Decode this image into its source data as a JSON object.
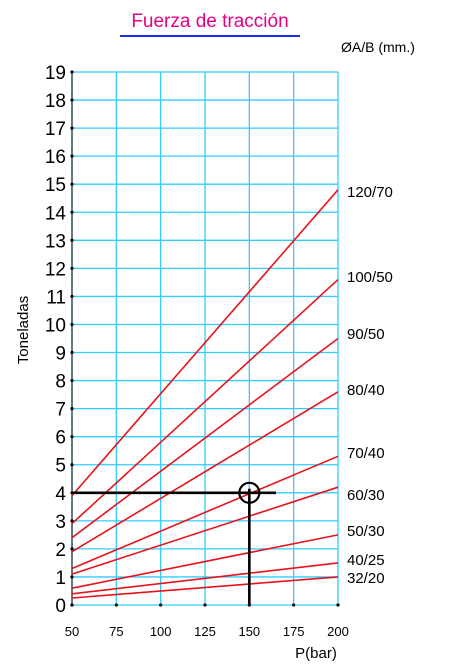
{
  "chart_data": {
    "type": "line",
    "title": "Fuerza de tracción",
    "legend_title": "ØA/B (mm.)",
    "xlabel": "P(bar)",
    "ylabel": "Toneladas",
    "xlim": [
      50,
      200
    ],
    "ylim": [
      0,
      19
    ],
    "x_ticks": [
      50,
      75,
      100,
      125,
      150,
      175,
      200
    ],
    "y_ticks": [
      0,
      1,
      2,
      3,
      4,
      5,
      6,
      7,
      8,
      9,
      10,
      11,
      12,
      13,
      14,
      15,
      16,
      17,
      18,
      19
    ],
    "x_tick_labels": [
      "50",
      "75",
      "100",
      "125",
      "150",
      "175",
      "200"
    ],
    "y_tick_labels": [
      "0",
      "1",
      "2",
      "3",
      "4",
      "5",
      "6",
      "7",
      "8",
      "9",
      "10",
      "11",
      "12",
      "13",
      "14",
      "15",
      "16",
      "17",
      "18",
      "19"
    ],
    "grid": true,
    "colors": {
      "grid": "#33ccff",
      "series": "#e8141b",
      "title": "#e60087",
      "underline": "#1e2ee6",
      "marker": "#000000"
    },
    "series": [
      {
        "name": "120/70",
        "x": [
          50,
          200
        ],
        "y": [
          3.9,
          14.8
        ]
      },
      {
        "name": "100/50",
        "x": [
          50,
          200
        ],
        "y": [
          2.9,
          11.6
        ]
      },
      {
        "name": "90/50",
        "x": [
          50,
          200
        ],
        "y": [
          2.4,
          9.5
        ]
      },
      {
        "name": "80/40",
        "x": [
          50,
          200
        ],
        "y": [
          1.9,
          7.6
        ]
      },
      {
        "name": "70/40",
        "x": [
          50,
          200
        ],
        "y": [
          1.3,
          5.3
        ]
      },
      {
        "name": "60/30",
        "x": [
          50,
          200
        ],
        "y": [
          1.1,
          4.2
        ]
      },
      {
        "name": "50/30",
        "x": [
          50,
          200
        ],
        "y": [
          0.6,
          2.5
        ]
      },
      {
        "name": "40/25",
        "x": [
          50,
          200
        ],
        "y": [
          0.4,
          1.5
        ]
      },
      {
        "name": "32/20",
        "x": [
          50,
          200
        ],
        "y": [
          0.25,
          1.0
        ]
      }
    ],
    "example": {
      "x": 150,
      "y": 4.0
    }
  }
}
